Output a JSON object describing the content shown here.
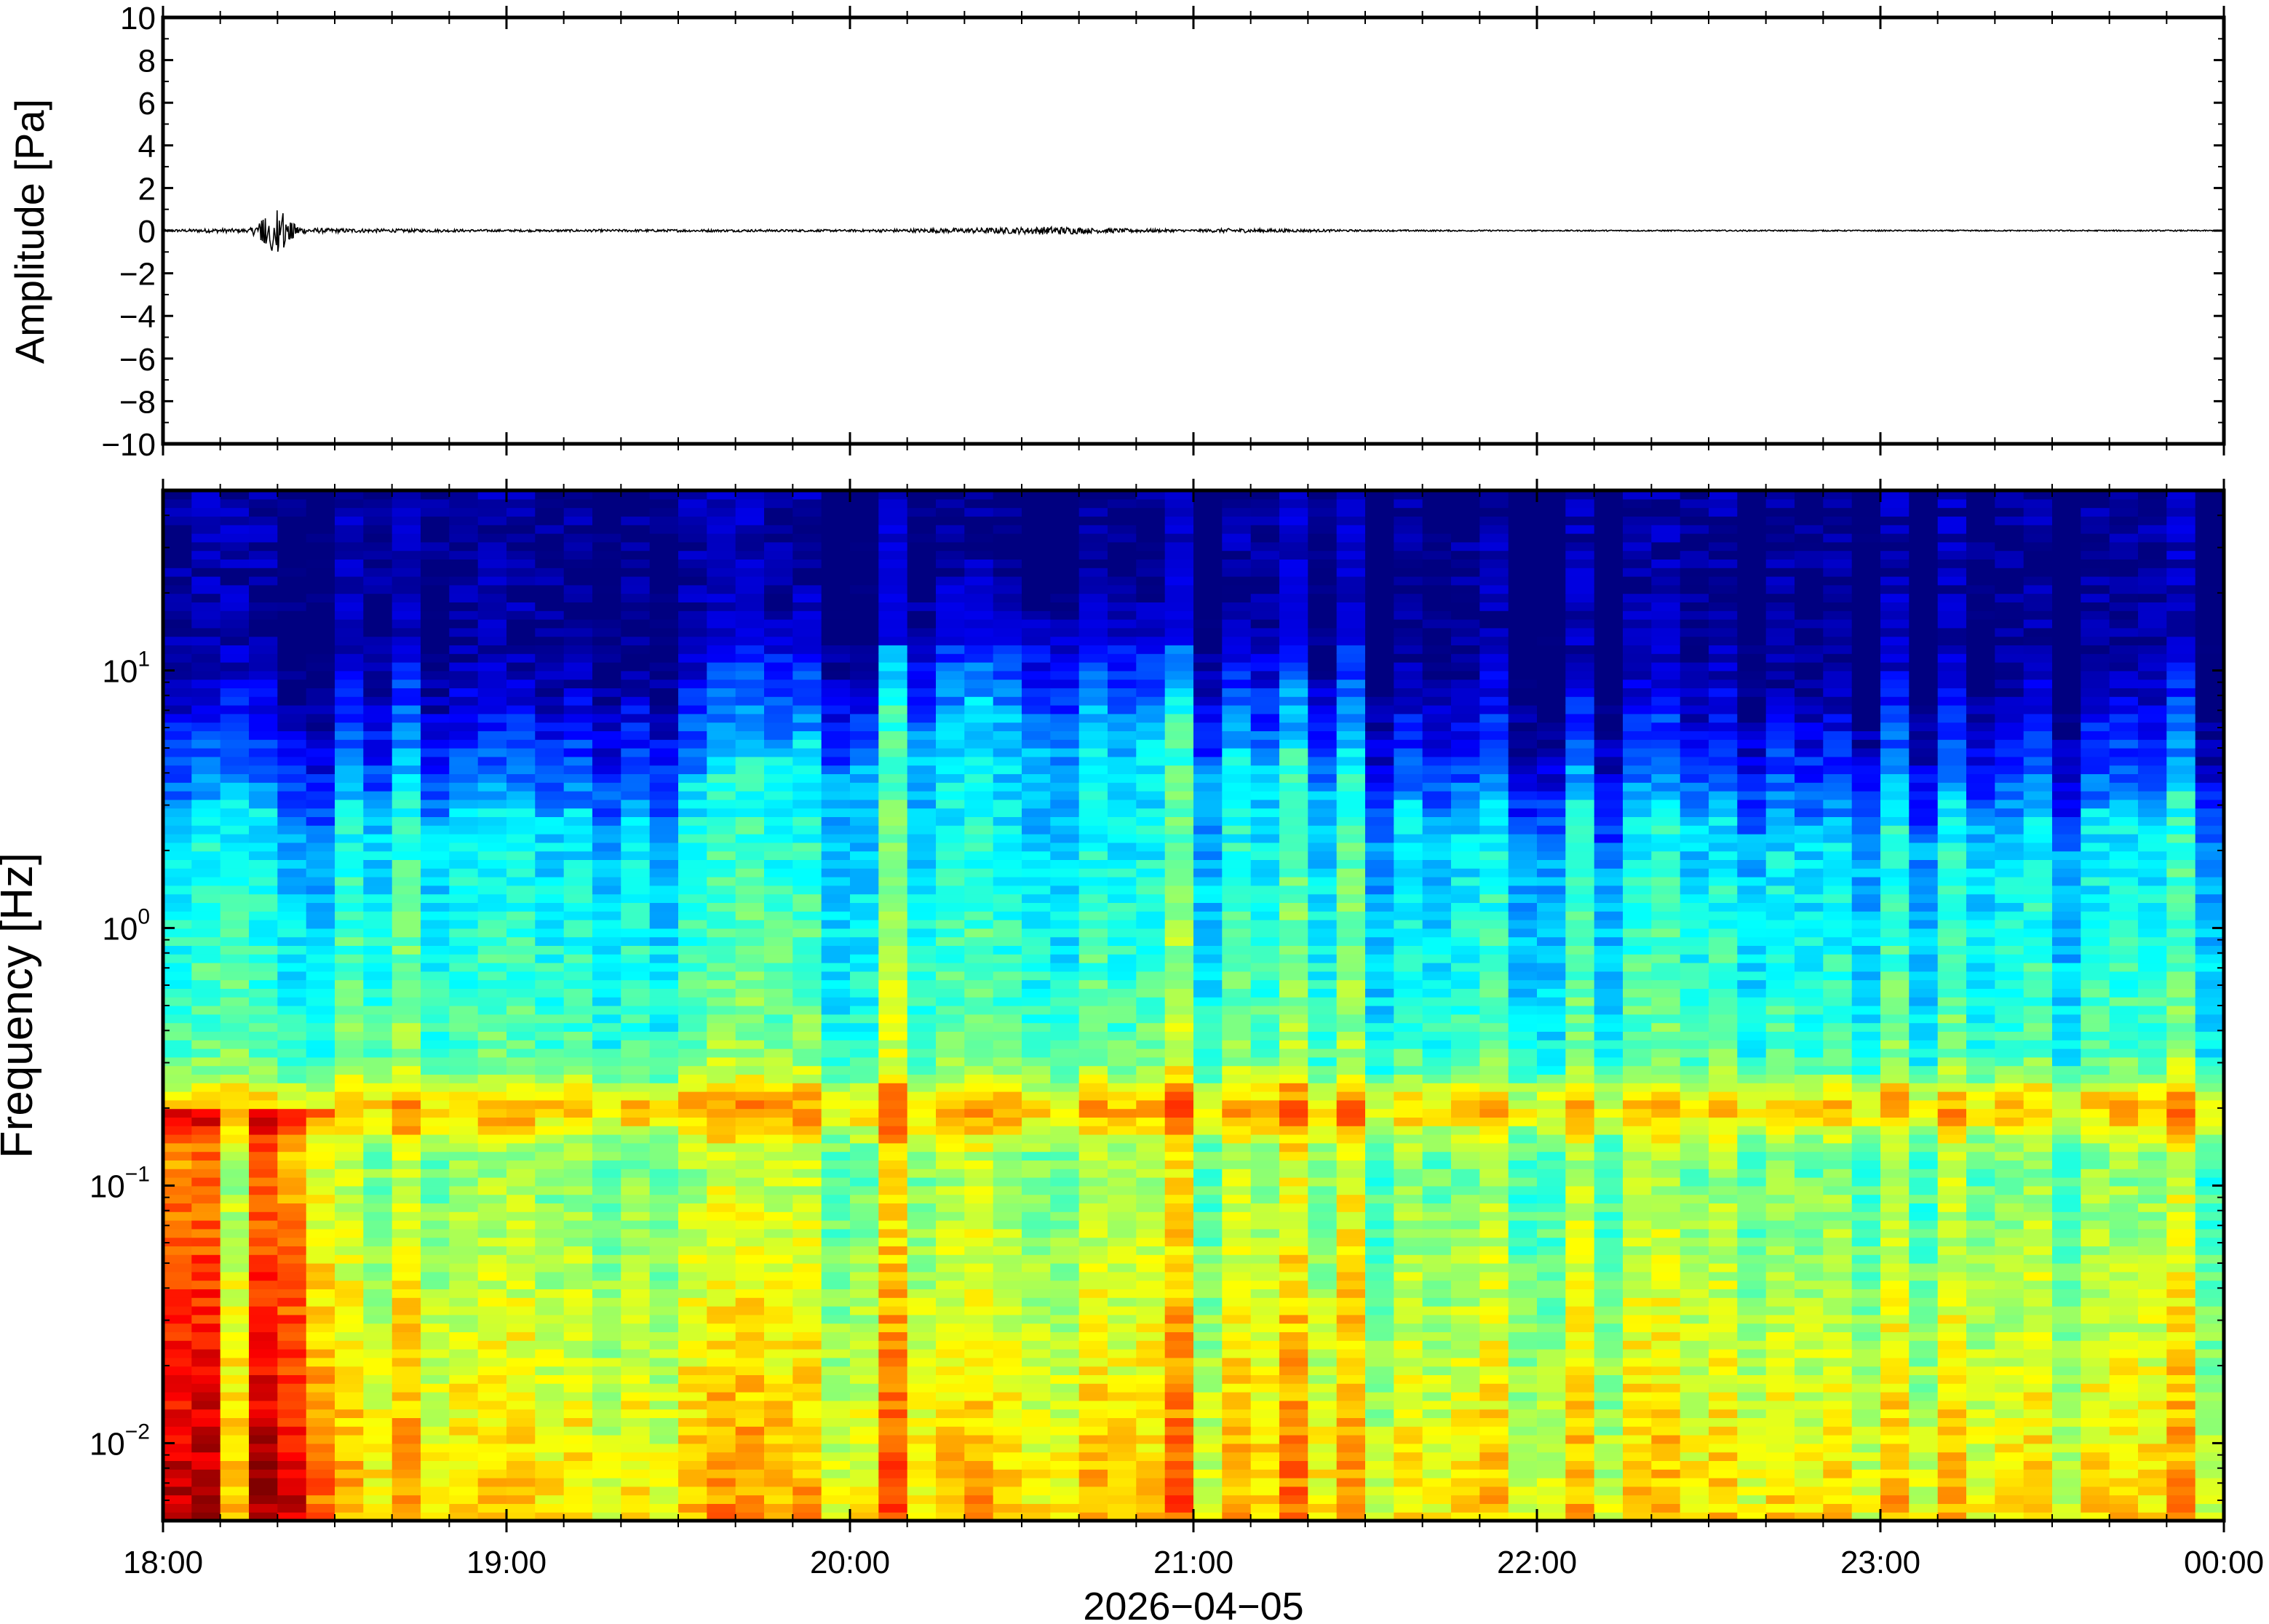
{
  "chart_data": [
    {
      "type": "line",
      "ylabel": "Amplitude [Pa]",
      "ylim": [
        -10,
        10
      ],
      "yticks": [
        -10,
        -8,
        -6,
        -4,
        -2,
        0,
        2,
        4,
        6,
        8,
        10
      ],
      "ytick_labels": [
        "−10",
        "−8",
        "−6",
        "−4",
        "−2",
        "0",
        "2",
        "4",
        "6",
        "8",
        "10"
      ],
      "xlim": [
        "18:00",
        "00:00"
      ],
      "series": [
        {
          "x": [
            "18:00",
            "18:10",
            "18:15",
            "18:18",
            "18:19",
            "18:20",
            "18:21",
            "18:22",
            "18:25",
            "18:30",
            "18:40",
            "19:00",
            "19:30",
            "20:00",
            "20:30",
            "20:36",
            "20:42",
            "21:00",
            "21:06",
            "21:30",
            "22:00",
            "22:30",
            "23:00",
            "23:30",
            "00:00"
          ],
          "values": [
            0.05,
            0.1,
            0.08,
            0.6,
            -1.0,
            1.1,
            -0.9,
            0.4,
            0.12,
            0.1,
            0.08,
            0.05,
            0.06,
            0.05,
            0.15,
            0.2,
            0.12,
            0.05,
            0.1,
            0.04,
            0.03,
            0.03,
            0.03,
            0.03,
            0.03
          ]
        }
      ],
      "color": "#000000"
    },
    {
      "type": "heatmap",
      "ylabel": "Frequency [Hz]",
      "yscale": "log",
      "ylim": [
        0.005,
        50
      ],
      "yticks": [
        0.01,
        0.1,
        1,
        10
      ],
      "ytick_labels": [
        {
          "base": "10",
          "exp": "−2"
        },
        {
          "base": "10",
          "exp": "−1"
        },
        {
          "base": "10",
          "exp": "0"
        },
        {
          "base": "10",
          "exp": "1"
        }
      ],
      "xlabel": "2026−04−05",
      "xlim": [
        "18:00",
        "00:00"
      ],
      "xtick_labels": [
        "18:00",
        "19:00",
        "20:00",
        "21:00",
        "22:00",
        "23:00",
        "00:00"
      ],
      "colormap": "jet",
      "colors": [
        "#00007f",
        "#0000ff",
        "#00a0ff",
        "#5ae5e5",
        "#c8f07a",
        "#ffe070",
        "#ffa040",
        "#ff4040"
      ]
    }
  ]
}
